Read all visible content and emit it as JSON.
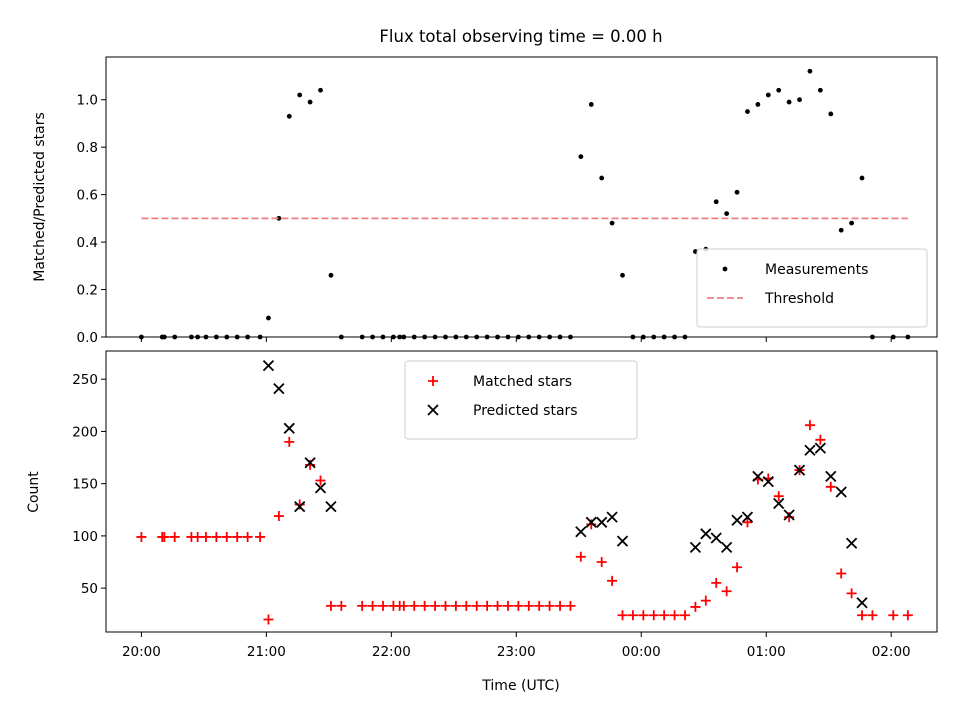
{
  "chart_data": [
    {
      "type": "scatter",
      "title": "Flux total observing time = 0.00 h",
      "xlabel": "",
      "ylabel": "Matched/Predicted stars",
      "xlim": [
        "19:43",
        "02:22"
      ],
      "ylim": [
        0,
        1.18
      ],
      "yticks": [
        0.0,
        0.2,
        0.4,
        0.6,
        0.8,
        1.0
      ],
      "ytick_labels": [
        "0.0",
        "0.2",
        "0.4",
        "0.6",
        "0.8",
        "1.0"
      ],
      "xtick_labels_visible": false,
      "legend_position": "bottom-right",
      "grid": false,
      "series": [
        {
          "name": "Measurements",
          "marker": "dot",
          "color": "#000000",
          "points": [
            [
              "20:00",
              0.0
            ],
            [
              "20:10",
              0.0
            ],
            [
              "20:11",
              0.0
            ],
            [
              "20:16",
              0.0
            ],
            [
              "20:24",
              0.0
            ],
            [
              "20:27",
              0.0
            ],
            [
              "20:31",
              0.0
            ],
            [
              "20:36",
              0.0
            ],
            [
              "20:41",
              0.0
            ],
            [
              "20:46",
              0.0
            ],
            [
              "20:51",
              0.0
            ],
            [
              "20:57",
              0.0
            ],
            [
              "21:01",
              0.08
            ],
            [
              "21:06",
              0.5
            ],
            [
              "21:11",
              0.93
            ],
            [
              "21:16",
              1.02
            ],
            [
              "21:21",
              0.99
            ],
            [
              "21:26",
              1.04
            ],
            [
              "21:31",
              0.26
            ],
            [
              "21:36",
              0.0
            ],
            [
              "21:46",
              0.0
            ],
            [
              "21:51",
              0.0
            ],
            [
              "21:56",
              0.0
            ],
            [
              "22:01",
              0.0
            ],
            [
              "22:04",
              0.0
            ],
            [
              "22:06",
              0.0
            ],
            [
              "22:11",
              0.0
            ],
            [
              "22:16",
              0.0
            ],
            [
              "22:21",
              0.0
            ],
            [
              "22:26",
              0.0
            ],
            [
              "22:31",
              0.0
            ],
            [
              "22:36",
              0.0
            ],
            [
              "22:41",
              0.0
            ],
            [
              "22:46",
              0.0
            ],
            [
              "22:51",
              0.0
            ],
            [
              "22:56",
              0.0
            ],
            [
              "23:01",
              0.0
            ],
            [
              "23:06",
              0.0
            ],
            [
              "23:11",
              0.0
            ],
            [
              "23:16",
              0.0
            ],
            [
              "23:21",
              0.0
            ],
            [
              "23:26",
              0.0
            ],
            [
              "23:31",
              0.76
            ],
            [
              "23:36",
              0.98
            ],
            [
              "23:41",
              0.67
            ],
            [
              "23:46",
              0.48
            ],
            [
              "23:51",
              0.26
            ],
            [
              "23:56",
              0.0
            ],
            [
              "00:01",
              0.0
            ],
            [
              "00:06",
              0.0
            ],
            [
              "00:11",
              0.0
            ],
            [
              "00:16",
              0.0
            ],
            [
              "00:21",
              0.0
            ],
            [
              "00:26",
              0.36
            ],
            [
              "00:31",
              0.37
            ],
            [
              "00:36",
              0.57
            ],
            [
              "00:41",
              0.52
            ],
            [
              "00:46",
              0.61
            ],
            [
              "00:51",
              0.95
            ],
            [
              "00:56",
              0.98
            ],
            [
              "01:01",
              1.02
            ],
            [
              "01:06",
              1.04
            ],
            [
              "01:11",
              0.99
            ],
            [
              "01:16",
              1.0
            ],
            [
              "01:21",
              1.12
            ],
            [
              "01:26",
              1.04
            ],
            [
              "01:31",
              0.94
            ],
            [
              "01:36",
              0.45
            ],
            [
              "01:41",
              0.48
            ],
            [
              "01:46",
              0.67
            ],
            [
              "01:51",
              0.0
            ],
            [
              "02:01",
              0.0
            ],
            [
              "02:08",
              0.0
            ]
          ]
        },
        {
          "name": "Threshold",
          "style": "dashed-line",
          "color": "#f08080",
          "x": [
            "20:00",
            "02:08"
          ],
          "values": [
            0.5,
            0.5
          ]
        }
      ]
    },
    {
      "type": "scatter",
      "title": "",
      "xlabel": "Time (UTC)",
      "ylabel": "Count",
      "xlim": [
        "19:43",
        "02:22"
      ],
      "ylim": [
        8,
        277
      ],
      "yticks": [
        50,
        100,
        150,
        200,
        250
      ],
      "ytick_labels": [
        "50",
        "100",
        "150",
        "200",
        "250"
      ],
      "xticks": [
        "20:00",
        "21:00",
        "22:00",
        "23:00",
        "00:00",
        "01:00",
        "02:00"
      ],
      "xtick_labels": [
        "20:00",
        "21:00",
        "22:00",
        "23:00",
        "00:00",
        "01:00",
        "02:00"
      ],
      "legend_position": "top-center",
      "grid": false,
      "series": [
        {
          "name": "Matched stars",
          "marker": "plus",
          "color": "#ff0000",
          "points": [
            [
              "20:00",
              99
            ],
            [
              "20:10",
              99
            ],
            [
              "20:11",
              99
            ],
            [
              "20:16",
              99
            ],
            [
              "20:24",
              99
            ],
            [
              "20:27",
              99
            ],
            [
              "20:31",
              99
            ],
            [
              "20:36",
              99
            ],
            [
              "20:41",
              99
            ],
            [
              "20:46",
              99
            ],
            [
              "20:51",
              99
            ],
            [
              "20:57",
              99
            ],
            [
              "21:01",
              20
            ],
            [
              "21:06",
              119
            ],
            [
              "21:11",
              190
            ],
            [
              "21:16",
              130
            ],
            [
              "21:21",
              168
            ],
            [
              "21:26",
              153
            ],
            [
              "21:31",
              33
            ],
            [
              "21:36",
              33
            ],
            [
              "21:46",
              33
            ],
            [
              "21:51",
              33
            ],
            [
              "21:56",
              33
            ],
            [
              "22:01",
              33
            ],
            [
              "22:04",
              33
            ],
            [
              "22:06",
              33
            ],
            [
              "22:11",
              33
            ],
            [
              "22:16",
              33
            ],
            [
              "22:21",
              33
            ],
            [
              "22:26",
              33
            ],
            [
              "22:31",
              33
            ],
            [
              "22:36",
              33
            ],
            [
              "22:41",
              33
            ],
            [
              "22:46",
              33
            ],
            [
              "22:51",
              33
            ],
            [
              "22:56",
              33
            ],
            [
              "23:01",
              33
            ],
            [
              "23:06",
              33
            ],
            [
              "23:11",
              33
            ],
            [
              "23:16",
              33
            ],
            [
              "23:21",
              33
            ],
            [
              "23:26",
              33
            ],
            [
              "23:31",
              80
            ],
            [
              "23:36",
              111
            ],
            [
              "23:41",
              75
            ],
            [
              "23:46",
              57
            ],
            [
              "23:51",
              24
            ],
            [
              "23:56",
              24
            ],
            [
              "00:01",
              24
            ],
            [
              "00:06",
              24
            ],
            [
              "00:11",
              24
            ],
            [
              "00:16",
              24
            ],
            [
              "00:21",
              24
            ],
            [
              "00:26",
              32
            ],
            [
              "00:31",
              38
            ],
            [
              "00:36",
              55
            ],
            [
              "00:41",
              47
            ],
            [
              "00:46",
              70
            ],
            [
              "00:51",
              113
            ],
            [
              "00:56",
              154
            ],
            [
              "01:01",
              155
            ],
            [
              "01:06",
              138
            ],
            [
              "01:11",
              118
            ],
            [
              "01:16",
              163
            ],
            [
              "01:21",
              206
            ],
            [
              "01:26",
              192
            ],
            [
              "01:31",
              147
            ],
            [
              "01:36",
              64
            ],
            [
              "01:41",
              45
            ],
            [
              "01:46",
              24
            ],
            [
              "01:51",
              24
            ],
            [
              "02:01",
              24
            ],
            [
              "02:08",
              24
            ]
          ]
        },
        {
          "name": "Predicted stars",
          "marker": "x",
          "color": "#000000",
          "points": [
            [
              "21:01",
              263
            ],
            [
              "21:06",
              241
            ],
            [
              "21:11",
              203
            ],
            [
              "21:16",
              128
            ],
            [
              "21:21",
              170
            ],
            [
              "21:26",
              146
            ],
            [
              "21:31",
              128
            ],
            [
              "23:31",
              104
            ],
            [
              "23:36",
              113
            ],
            [
              "23:41",
              113
            ],
            [
              "23:46",
              118
            ],
            [
              "23:51",
              95
            ],
            [
              "00:26",
              89
            ],
            [
              "00:31",
              102
            ],
            [
              "00:36",
              98
            ],
            [
              "00:41",
              89
            ],
            [
              "00:46",
              115
            ],
            [
              "00:51",
              118
            ],
            [
              "00:56",
              157
            ],
            [
              "01:01",
              152
            ],
            [
              "01:06",
              131
            ],
            [
              "01:11",
              120
            ],
            [
              "01:16",
              163
            ],
            [
              "01:21",
              182
            ],
            [
              "01:26",
              184
            ],
            [
              "01:31",
              157
            ],
            [
              "01:36",
              142
            ],
            [
              "01:41",
              93
            ],
            [
              "01:46",
              36
            ]
          ]
        }
      ]
    }
  ]
}
